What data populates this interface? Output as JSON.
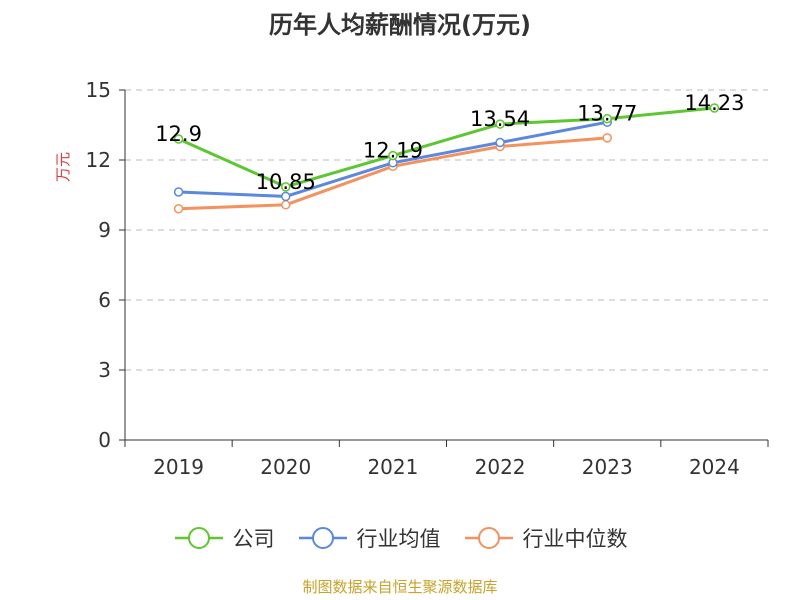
{
  "title": "历年人均薪酬情况(万元)",
  "source": "制图数据来自恒生聚源数据库",
  "colors": {
    "axis": "#333333",
    "grid": "#bbbbbb",
    "ylabel": "#e03a3a"
  },
  "chart_data": {
    "type": "line",
    "title": "历年人均薪酬情况(万元)",
    "xlabel": "",
    "ylabel": "万元",
    "categories": [
      "2019",
      "2020",
      "2021",
      "2022",
      "2023",
      "2024"
    ],
    "ylim": [
      0,
      15
    ],
    "yticks": [
      0,
      3,
      6,
      9,
      12,
      15
    ],
    "grid": "horizontal dashed",
    "legend": "bottom",
    "series": [
      {
        "name": "公司",
        "color": "#5cc72f",
        "values": [
          12.9,
          10.85,
          12.19,
          13.54,
          13.77,
          14.23
        ],
        "labels": [
          "12.9",
          "10.85",
          "12.19",
          "13.54",
          "13.77",
          "14.23"
        ]
      },
      {
        "name": "行业均值",
        "color": "#5b87de",
        "values": [
          10.63,
          10.44,
          11.88,
          12.75,
          13.62,
          null
        ]
      },
      {
        "name": "行业中位数",
        "color": "#f4925e",
        "values": [
          9.91,
          10.08,
          11.73,
          12.58,
          12.95,
          null
        ]
      }
    ]
  }
}
